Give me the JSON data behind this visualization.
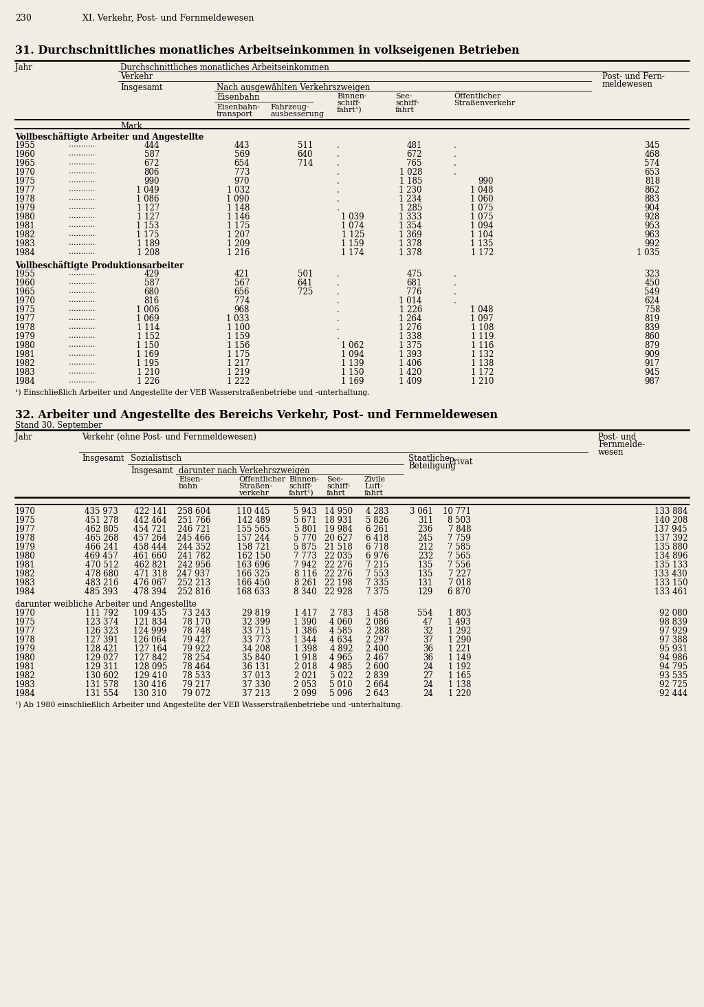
{
  "page_number": "230",
  "chapter": "XI. Verkehr, Post- und Fernmeldewesen",
  "table31_title": "31. Durchschnittliches monatliches Arbeitseinkommen in volkseigenen Betrieben",
  "table32_title": "32. Arbeiter und Angestellte des Bereichs Verkehr, Post- und Fernmeldewesen",
  "table32_subtitle": "Stand 30. September",
  "background": "#f0ede4",
  "table31": {
    "section1_label": "Vollbeschäftigte Arbeiter und Angestellte",
    "section1_data": [
      [
        "1955",
        "444",
        "443",
        "511",
        ".",
        "481",
        ".",
        "345"
      ],
      [
        "1960",
        "587",
        "569",
        "640",
        ".",
        "672",
        ".",
        "468"
      ],
      [
        "1965",
        "672",
        "654",
        "714",
        ".",
        "765",
        ".",
        "574"
      ],
      [
        "1970",
        "806",
        "773",
        "",
        ".",
        "1 028",
        ".",
        "653"
      ],
      [
        "1975",
        "990",
        "970",
        "",
        ".",
        "1 185",
        "990",
        "818"
      ],
      [
        "1977",
        "1 049",
        "1 032",
        "",
        ".",
        "1 230",
        "1 048",
        "862"
      ],
      [
        "1978",
        "1 086",
        "1 090",
        "",
        ".",
        "1 234",
        "1 060",
        "883"
      ],
      [
        "1979",
        "1 127",
        "1 148",
        "",
        ".",
        "1 285",
        "1 075",
        "904"
      ],
      [
        "1980",
        "1 127",
        "1 146",
        "",
        "1 039",
        "1 333",
        "1 075",
        "928"
      ],
      [
        "1981",
        "1 153",
        "1 175",
        "",
        "1 074",
        "1 354",
        "1 094",
        "953"
      ],
      [
        "1982",
        "1 175",
        "1 207",
        "",
        "1 125",
        "1 369",
        "1 104",
        "963"
      ],
      [
        "1983",
        "1 189",
        "1 209",
        "",
        "1 159",
        "1 378",
        "1 135",
        "992"
      ],
      [
        "1984",
        "1 208",
        "1 216",
        "",
        "1 174",
        "1 378",
        "1 172",
        "1 035"
      ]
    ],
    "section2_label": "Vollbeschäftigte Produktionsarbeiter",
    "section2_data": [
      [
        "1955",
        "429",
        "421",
        "501",
        ".",
        "475",
        ".",
        "323"
      ],
      [
        "1960",
        "587",
        "567",
        "641",
        ".",
        "681",
        ".",
        "450"
      ],
      [
        "1965",
        "680",
        "656",
        "725",
        ".",
        "776",
        ".",
        "549"
      ],
      [
        "1970",
        "816",
        "774",
        "",
        ".",
        "1 014",
        ".",
        "624"
      ],
      [
        "1975",
        "1 006",
        "968",
        "",
        ".",
        "1 226",
        "1 048",
        "758"
      ],
      [
        "1977",
        "1 069",
        "1 033",
        "",
        ".",
        "1 264",
        "1 097",
        "819"
      ],
      [
        "1978",
        "1 114",
        "1 100",
        "",
        ".",
        "1 276",
        "1 108",
        "839"
      ],
      [
        "1979",
        "1 152",
        "1 159",
        "",
        ".",
        "1 338",
        "1 119",
        "860"
      ],
      [
        "1980",
        "1 150",
        "1 156",
        "",
        "1 062",
        "1 375",
        "1 116",
        "879"
      ],
      [
        "1981",
        "1 169",
        "1 175",
        "",
        "1 094",
        "1 393",
        "1 132",
        "909"
      ],
      [
        "1982",
        "1 195",
        "1 217",
        "",
        "1 139",
        "1 406",
        "1 138",
        "917"
      ],
      [
        "1983",
        "1 210",
        "1 219",
        "",
        "1 150",
        "1 420",
        "1 172",
        "945"
      ],
      [
        "1984",
        "1 226",
        "1 222",
        "",
        "1 169",
        "1 409",
        "1 210",
        "987"
      ]
    ],
    "footnote": "¹) Einschließlich Arbeiter und Angestellte der VEB Wasserstraßenbetriebe und -unterhaltung."
  },
  "table32": {
    "section1_data": [
      [
        "1970",
        "435 973",
        "422 141",
        "258 604",
        "110 445",
        "5 943",
        "14 950",
        "4 283",
        "3 061",
        "10 771",
        "133 884"
      ],
      [
        "1975",
        "451 278",
        "442 464",
        "251 766",
        "142 489",
        "5 671",
        "18 931",
        "5 826",
        "311",
        "8 503",
        "140 208"
      ],
      [
        "1977",
        "462 805",
        "454 721",
        "246 721",
        "155 565",
        "5 801",
        "19 984",
        "6 261",
        "236",
        "7 848",
        "137 945"
      ],
      [
        "1978",
        "465 268",
        "457 264",
        "245 466",
        "157 244",
        "5 770",
        "20 627",
        "6 418",
        "245",
        "7 759",
        "137 392"
      ],
      [
        "1979",
        "466 241",
        "458 444",
        "244 352",
        "158 721",
        "5 875",
        "21 518",
        "6 718",
        "212",
        "7 585",
        "135 880"
      ],
      [
        "1980",
        "469 457",
        "461 660",
        "241 782",
        "162 150",
        "7 773",
        "22 035",
        "6 976",
        "232",
        "7 565",
        "134 896"
      ],
      [
        "1981",
        "470 512",
        "462 821",
        "242 956",
        "163 696",
        "7 942",
        "22 276",
        "7 215",
        "135",
        "7 556",
        "135 133"
      ],
      [
        "1982",
        "478 680",
        "471 318",
        "247 937",
        "166 325",
        "8 116",
        "22 276",
        "7 553",
        "135",
        "7 227",
        "133 430"
      ],
      [
        "1983",
        "483 216",
        "476 067",
        "252 213",
        "166 450",
        "8 261",
        "22 198",
        "7 335",
        "131",
        "7 018",
        "133 150"
      ],
      [
        "1984",
        "485 393",
        "478 394",
        "252 816",
        "168 633",
        "8 340",
        "22 928",
        "7 375",
        "129",
        "6 870",
        "133 461"
      ]
    ],
    "section2_label": "darunter weibliche Arbeiter und Angestellte",
    "section2_data": [
      [
        "1970",
        "111 792",
        "109 435",
        "73 243",
        "29 819",
        "1 417",
        "2 783",
        "1 458",
        "554",
        "1 803",
        "92 080"
      ],
      [
        "1975",
        "123 374",
        "121 834",
        "78 170",
        "32 399",
        "1 390",
        "4 060",
        "2 086",
        "47",
        "1 493",
        "98 839"
      ],
      [
        "1977",
        "126 323",
        "124 999",
        "78 748",
        "33 715",
        "1 386",
        "4 585",
        "2 288",
        "32",
        "1 292",
        "97 929"
      ],
      [
        "1978",
        "127 391",
        "126 064",
        "79 427",
        "33 773",
        "1 344",
        "4 634",
        "2 297",
        "37",
        "1 290",
        "97 388"
      ],
      [
        "1979",
        "128 421",
        "127 164",
        "79 922",
        "34 208",
        "1 398",
        "4 892",
        "2 400",
        "36",
        "1 221",
        "95 931"
      ],
      [
        "1980",
        "129 027",
        "127 842",
        "78 254",
        "35 840",
        "1 918",
        "4 965",
        "2 467",
        "36",
        "1 149",
        "94 986"
      ],
      [
        "1981",
        "129 311",
        "128 095",
        "78 464",
        "36 131",
        "2 018",
        "4 985",
        "2 600",
        "24",
        "1 192",
        "94 795"
      ],
      [
        "1982",
        "130 602",
        "129 410",
        "78 533",
        "37 013",
        "2 021",
        "5 022",
        "2 839",
        "27",
        "1 165",
        "93 535"
      ],
      [
        "1983",
        "131 578",
        "130 416",
        "79 217",
        "37 330",
        "2 053",
        "5 010",
        "2 664",
        "24",
        "1 138",
        "92 725"
      ],
      [
        "1984",
        "131 554",
        "130 310",
        "79 072",
        "37 213",
        "2 099",
        "5 096",
        "2 643",
        "24",
        "1 220",
        "92 444"
      ]
    ],
    "footnote": "¹) Ab 1980 einschließlich Arbeiter und Angestellte der VEB Wasserstraßenbetriebe und -unterhaltung."
  }
}
